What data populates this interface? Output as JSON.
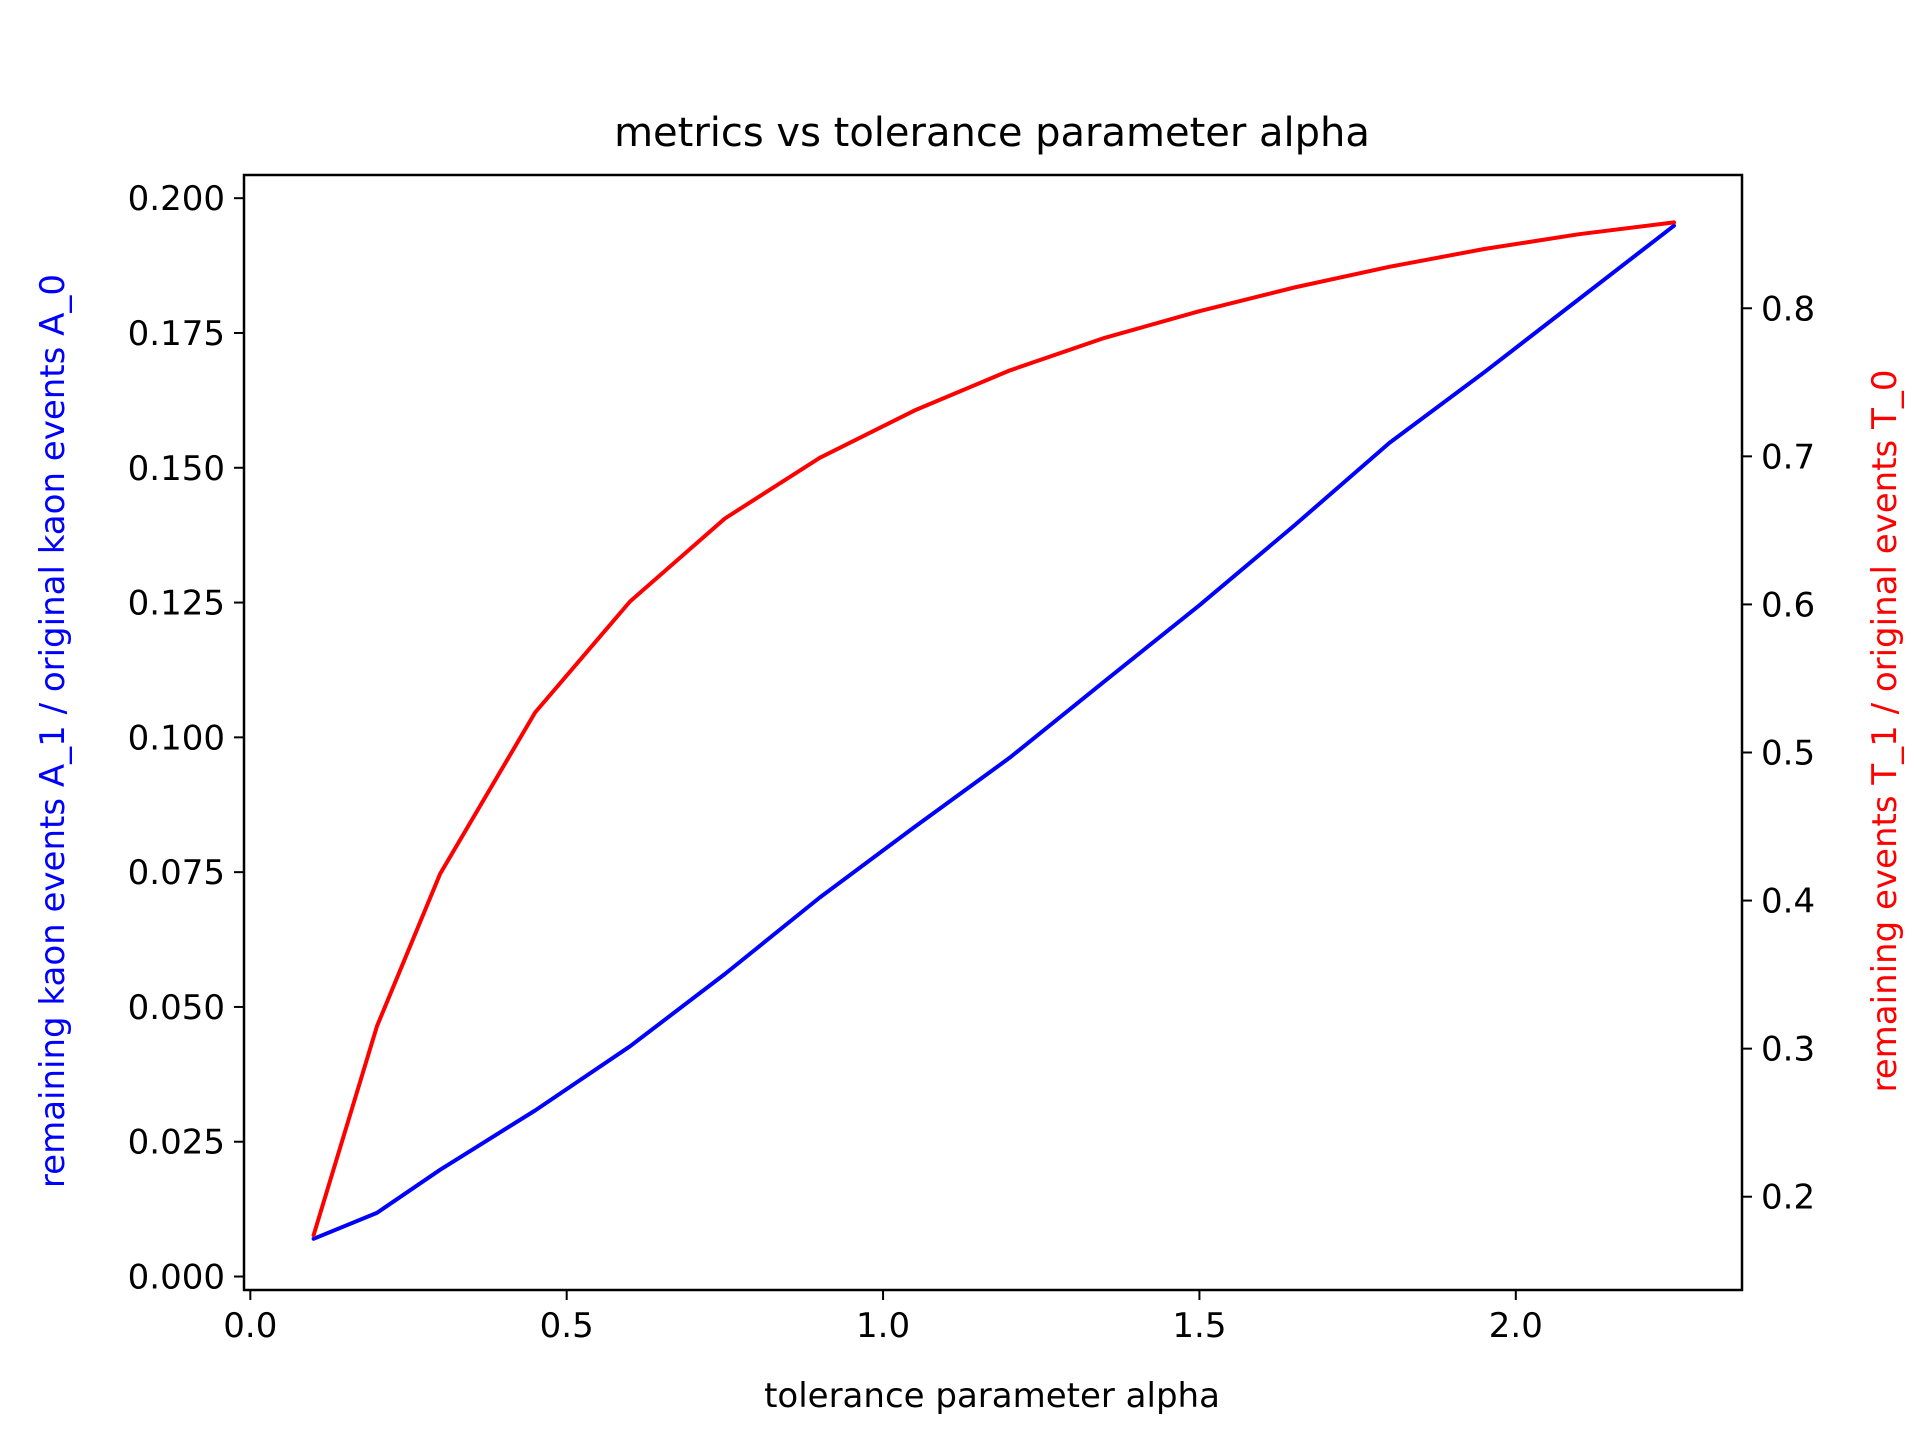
{
  "chart_data": {
    "type": "line",
    "title": "metrics vs tolerance parameter alpha",
    "xlabel": "tolerance parameter alpha",
    "ylabel_left": "remaining kaon events A_1 / original kaon events A_0",
    "ylabel_right": "remaining events T_1 / original events T_0",
    "xlim": [
      -0.01,
      2.3575
    ],
    "ylim_left": [
      -0.0025,
      0.2043
    ],
    "ylim_right": [
      0.137,
      0.89
    ],
    "x_ticks": [
      "0.0",
      "0.5",
      "1.0",
      "1.5",
      "2.0"
    ],
    "y_left_ticks": [
      "0.000",
      "0.025",
      "0.050",
      "0.075",
      "0.100",
      "0.125",
      "0.150",
      "0.175",
      "0.200"
    ],
    "y_right_ticks": [
      "0.2",
      "0.3",
      "0.4",
      "0.5",
      "0.6",
      "0.7",
      "0.8"
    ],
    "grid": false,
    "series": [
      {
        "axis": "left",
        "color": "#0000ff",
        "x": [
          0.1,
          0.2,
          0.3,
          0.45,
          0.6,
          0.75,
          0.9,
          1.05,
          1.2,
          1.35,
          1.5,
          1.65,
          1.8,
          1.95,
          2.1,
          2.25
        ],
        "y": [
          0.007,
          0.0118,
          0.0198,
          0.0308,
          0.0427,
          0.0561,
          0.0703,
          0.0834,
          0.0962,
          0.1104,
          0.1245,
          0.1393,
          0.1546,
          0.1677,
          0.1813,
          0.1949
        ]
      },
      {
        "axis": "right",
        "color": "#ff0000",
        "x": [
          0.1,
          0.2,
          0.3,
          0.45,
          0.6,
          0.75,
          0.9,
          1.05,
          1.2,
          1.35,
          1.5,
          1.65,
          1.8,
          1.95,
          2.1,
          2.25
        ],
        "y": [
          0.174,
          0.315,
          0.418,
          0.527,
          0.602,
          0.658,
          0.699,
          0.731,
          0.758,
          0.78,
          0.798,
          0.814,
          0.828,
          0.84,
          0.85,
          0.858
        ]
      }
    ]
  }
}
